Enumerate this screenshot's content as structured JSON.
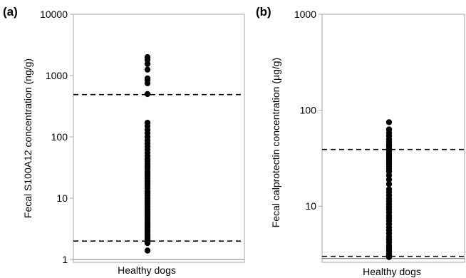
{
  "chart_data": [
    {
      "type": "scatter",
      "panel_label": "(a)",
      "ylabel": "Fecal S100A12 concentration (ng/g)",
      "y_scale": "log",
      "ylim": [
        0.9,
        10000
      ],
      "y_ticks": [
        1,
        10,
        100,
        1000,
        10000
      ],
      "y_tick_labels": [
        "1",
        "10",
        "100",
        "1000",
        "10000"
      ],
      "categories": [
        "Healthy dogs"
      ],
      "reference_lines": [
        {
          "style": "dashed",
          "value": 490
        },
        {
          "style": "dashed",
          "value": 2
        },
        {
          "style": "solid",
          "value": 1
        }
      ],
      "points": [
        2000,
        1800,
        1550,
        1250,
        900,
        850,
        750,
        500,
        170,
        150,
        130,
        115,
        100,
        88,
        78,
        70,
        62,
        55,
        49,
        44,
        40,
        36,
        33,
        30,
        27,
        25,
        23,
        21,
        19,
        17.5,
        16,
        14.5,
        13,
        12,
        11,
        10,
        9.2,
        8.5,
        7.8,
        7.2,
        6.6,
        6,
        5.5,
        5,
        4.6,
        4.2,
        3.9,
        3.6,
        3.3,
        3,
        2.8,
        2.6,
        2.4,
        2.25,
        2.1,
        1.95,
        1.85,
        1.4
      ]
    },
    {
      "type": "scatter",
      "panel_label": "(b)",
      "ylabel": "Fecal calprotectin concentration (µg/g)",
      "y_scale": "log",
      "ylim": [
        2.6,
        1000
      ],
      "y_ticks": [
        10,
        100,
        1000
      ],
      "y_tick_labels": [
        "10",
        "100",
        "1000"
      ],
      "categories": [
        "Healthy dogs"
      ],
      "reference_lines": [
        {
          "style": "dashed",
          "value": 39
        },
        {
          "style": "dashed",
          "value": 3
        },
        {
          "style": "solid",
          "value": 2.85
        }
      ],
      "points": [
        75,
        63,
        58,
        54,
        50,
        47,
        44,
        42,
        40,
        38,
        36,
        34,
        32,
        30.5,
        29,
        27.5,
        26,
        24.5,
        23,
        21,
        19,
        17,
        15,
        14,
        13,
        12,
        11.2,
        10.5,
        9.8,
        9.2,
        8.6,
        8,
        7.5,
        7,
        6.5,
        6,
        5.6,
        5.2,
        4.8,
        4.5,
        4.2,
        3.9,
        3.7,
        3.5,
        3.35,
        3.2,
        3.1,
        3.0,
        2.95
      ]
    }
  ]
}
